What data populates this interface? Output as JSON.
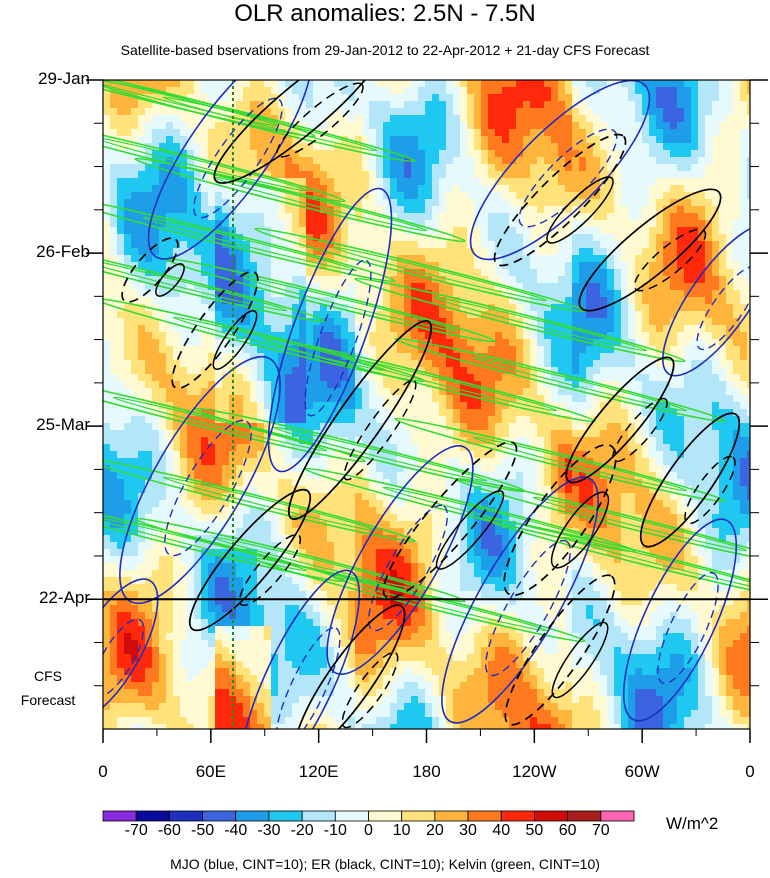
{
  "chart_data": {
    "type": "heatmap",
    "title": "OLR anomalies: 2.5N - 7.5N",
    "subtitle": "Satellite-based bservations from 29-Jan-2012 to 22-Apr-2012 + 21-day CFS Forecast",
    "x_ticks": [
      "0",
      "60E",
      "120E",
      "180",
      "120W",
      "60W",
      "0"
    ],
    "x_tick_lon": [
      0,
      60,
      120,
      180,
      240,
      300,
      360
    ],
    "y_ticks": [
      "29-Jan",
      "26-Feb",
      "25-Mar",
      "22-Apr"
    ],
    "y_tick_day": [
      0,
      28,
      56,
      84
    ],
    "y_range_days": [
      0,
      105
    ],
    "forecast_start_day": 84,
    "forecast_label": [
      "CFS",
      "Forecast"
    ],
    "colorbar": {
      "labels": [
        "-70",
        "-60",
        "-50",
        "-40",
        "-30",
        "-20",
        "-10",
        "0",
        "10",
        "20",
        "30",
        "40",
        "50",
        "60",
        "70"
      ],
      "colors": [
        "#8a2be2",
        "#0a0a9b",
        "#1e2fbf",
        "#3a64e0",
        "#1e9ee8",
        "#1ec8f0",
        "#b4e6fa",
        "#e6fafd",
        "#fffad2",
        "#ffe27a",
        "#ffb43c",
        "#ff7a1e",
        "#ff280a",
        "#d20a0a",
        "#aa1e1e",
        "#ff64b4"
      ],
      "units": "W/m^2"
    },
    "contours": {
      "mjo_color": "#1e2fbf",
      "er_color": "#000000",
      "kelvin_color": "#32dc32"
    },
    "footnote": "MJO (blue, CINT=10); ER (black, CINT=10); Kelvin (green, CINT=10)"
  }
}
